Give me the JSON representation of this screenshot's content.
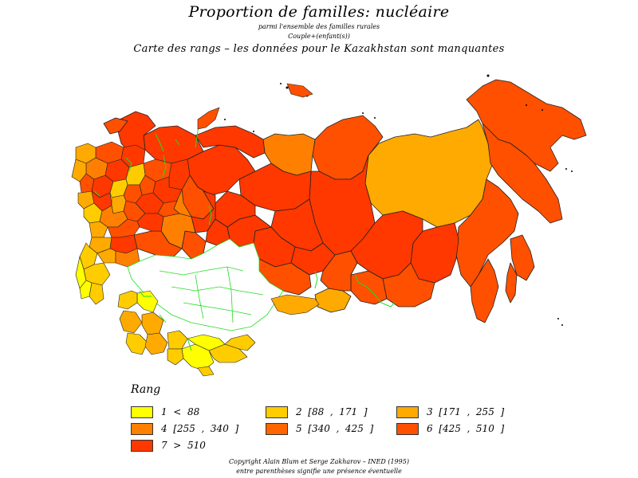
{
  "title": "Proportion de familles: nucléaire",
  "subtitle1": "parmi l'ensemble des familles rurales",
  "subtitle2": "Couple+(enfant(s))",
  "note": "Carte des rangs  –  les données pour le Kazakhstan sont manquantes",
  "legend": {
    "title": "Rang",
    "items": [
      {
        "label": "1  <  88",
        "color": "#ffff00"
      },
      {
        "label": "2  [88  ,  171  ]",
        "color": "#ffcc00"
      },
      {
        "label": "3  [171  ,  255  ]",
        "color": "#ffaa00"
      },
      {
        "label": "4  [255  ,  340  ]",
        "color": "#ff8000"
      },
      {
        "label": "5  [340  ,  425  ]",
        "color": "#ff6600"
      },
      {
        "label": "6  [425  ,  510  ]",
        "color": "#ff5000"
      },
      {
        "label": "7  >  510",
        "color": "#ff3800"
      }
    ]
  },
  "footer1": "Copyright  Alain  Blum  et  Serge  Zakharov  –  INED  (1995)",
  "footer2": "entre parenthèses signifie une présence éventuelle",
  "colors": {
    "missing_fill": "#ffffff",
    "border_green": "#22dd22",
    "region_border": "#222222"
  }
}
